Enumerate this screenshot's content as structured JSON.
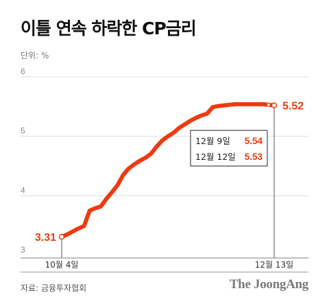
{
  "header": {
    "title": "이틀 연속 하락한 CP금리",
    "unit": "단위: %"
  },
  "footer": {
    "source": "자료: 금융투자협회",
    "brand": "The JoongAng"
  },
  "colors": {
    "line": "#ee3a0f",
    "axis": "#9a9a9a",
    "grid": "#dedede"
  },
  "chart_data": {
    "type": "line",
    "title": "이틀 연속 하락한 CP금리",
    "ylabel": "단위: %",
    "xlabel": "",
    "ylim": [
      3,
      6
    ],
    "yticks": [
      3,
      4,
      5,
      6
    ],
    "grid": true,
    "x_tick_labels": [
      "10월 4일",
      "12월 13일"
    ],
    "series": [
      {
        "values": [
          3.31,
          3.35,
          3.4,
          3.45,
          3.49,
          3.75,
          3.79,
          3.82,
          3.95,
          4.06,
          4.18,
          4.35,
          4.46,
          4.53,
          4.59,
          4.64,
          4.71,
          4.83,
          4.93,
          5.0,
          5.06,
          5.14,
          5.2,
          5.26,
          5.31,
          5.35,
          5.38,
          5.49,
          5.51,
          5.52,
          5.53,
          5.54,
          5.54,
          5.54,
          5.54,
          5.54,
          5.54,
          5.53,
          5.52
        ]
      }
    ],
    "start": {
      "label": "10월 4일",
      "value": "3.31"
    },
    "end": {
      "label": "12월 13일",
      "value": "5.52"
    },
    "annotations": [
      {
        "date": "12월 9일",
        "value": "5.54"
      },
      {
        "date": "12월 12일",
        "value": "5.53"
      }
    ]
  }
}
